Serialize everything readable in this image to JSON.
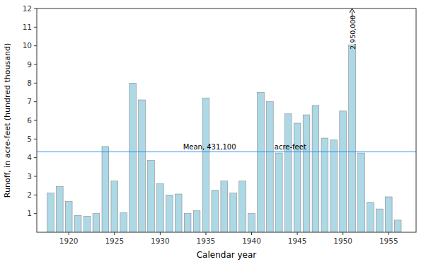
{
  "chart_data": {
    "type": "bar",
    "x": [
      1918,
      1919,
      1920,
      1921,
      1922,
      1923,
      1924,
      1925,
      1926,
      1927,
      1928,
      1929,
      1930,
      1931,
      1932,
      1933,
      1934,
      1935,
      1936,
      1937,
      1938,
      1939,
      1940,
      1941,
      1942,
      1943,
      1944,
      1945,
      1946,
      1947,
      1948,
      1949,
      1950,
      1951,
      1952,
      1953,
      1954,
      1955,
      1956,
      1957
    ],
    "values": [
      2.1,
      2.45,
      1.65,
      0.9,
      0.85,
      1.0,
      4.6,
      2.75,
      1.05,
      8.0,
      7.1,
      3.85,
      2.6,
      2.0,
      2.05,
      1.0,
      1.15,
      7.2,
      2.25,
      2.75,
      2.1,
      2.75,
      1.0,
      7.5,
      7.0,
      4.25,
      6.35,
      5.85,
      6.3,
      6.8,
      5.05,
      4.95,
      6.5,
      10.05,
      4.25,
      1.6,
      1.25,
      1.9,
      0.65,
      0.0
    ],
    "color": "#add8e6",
    "xlabel": "Calendar year",
    "ylabel": "Runoff, in acre-feet (hundred thousand)",
    "xlim": [
      1916.5,
      1958.0
    ],
    "xticks": [
      1920,
      1925,
      1930,
      1935,
      1940,
      1945,
      1950,
      1955
    ],
    "ylim": [
      0,
      12
    ],
    "yticks": [
      1,
      2,
      3,
      4,
      5,
      6,
      7,
      8,
      9,
      10,
      11,
      12
    ],
    "grid": false,
    "mean_line": {
      "value": 4.311,
      "color": "#1e90ff",
      "labels": [
        {
          "text": "Mean, 431,100",
          "x": 1932.5
        },
        {
          "text": "acre-feet",
          "x": 1942.5
        }
      ]
    },
    "arrow": {
      "x": 1951,
      "from": 11.4,
      "to": 12.0
    },
    "annotations": [
      {
        "text": "2,950,000",
        "x": 1951,
        "y": 9.8
      }
    ]
  }
}
